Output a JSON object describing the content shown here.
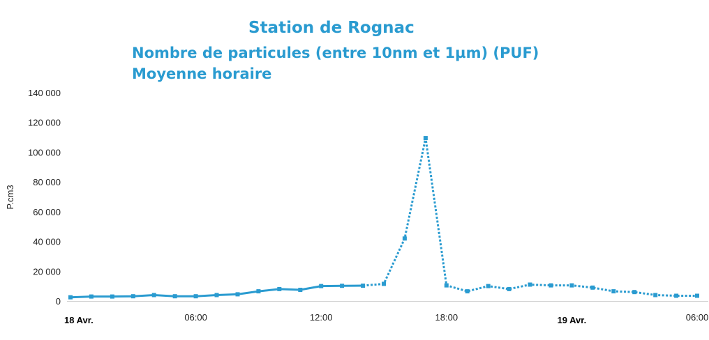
{
  "titles": {
    "line1": "Station de Rognac",
    "line2": "Nombre de particules (entre 10nm et 1µm) (PUF)",
    "line3": "Moyenne  horaire"
  },
  "chart_data": {
    "type": "line",
    "title": "Station de Rognac",
    "subtitle": "Nombre de particules (entre 10nm et 1µm) (PUF) — Moyenne  horaire",
    "ylabel": "P.cm3",
    "xlabel": "",
    "ylim": [
      0,
      140000
    ],
    "y_ticks": [
      "0",
      "20 000",
      "40 000",
      "60 000",
      "80 000",
      "100 000",
      "120 000",
      "140 000"
    ],
    "y_tick_values": [
      0,
      20000,
      40000,
      60000,
      80000,
      100000,
      120000,
      140000
    ],
    "x_ticks": [
      {
        "label": "18 Avr.",
        "hour": 0,
        "bold": true
      },
      {
        "label": "06:00",
        "hour": 6,
        "bold": false
      },
      {
        "label": "12:00",
        "hour": 12,
        "bold": false
      },
      {
        "label": "18:00",
        "hour": 18,
        "bold": false
      },
      {
        "label": "19 Avr.",
        "hour": 24,
        "bold": true
      },
      {
        "label": "06:00",
        "hour": 30,
        "bold": false
      }
    ],
    "x_range_hours": [
      0,
      30.3
    ],
    "color": "#2a9bd0",
    "grid": false,
    "series": [
      {
        "style": "solid",
        "x": [
          0,
          1,
          2,
          3,
          4,
          5,
          6,
          7,
          8,
          9,
          10,
          11,
          12,
          13,
          14
        ],
        "values": [
          2500,
          3000,
          3000,
          3200,
          4000,
          3200,
          3200,
          4000,
          4500,
          6500,
          8000,
          7500,
          10000,
          10200,
          10300
        ]
      },
      {
        "style": "dotted",
        "x": [
          14,
          15,
          16,
          17,
          18,
          19,
          20,
          21,
          22,
          23,
          24,
          25,
          26,
          27,
          28,
          29,
          30
        ],
        "values": [
          10300,
          11500,
          42000,
          109500,
          10500,
          6500,
          10000,
          8000,
          11000,
          10500,
          10500,
          9000,
          6500,
          6000,
          4000,
          3500,
          3500
        ]
      }
    ]
  }
}
